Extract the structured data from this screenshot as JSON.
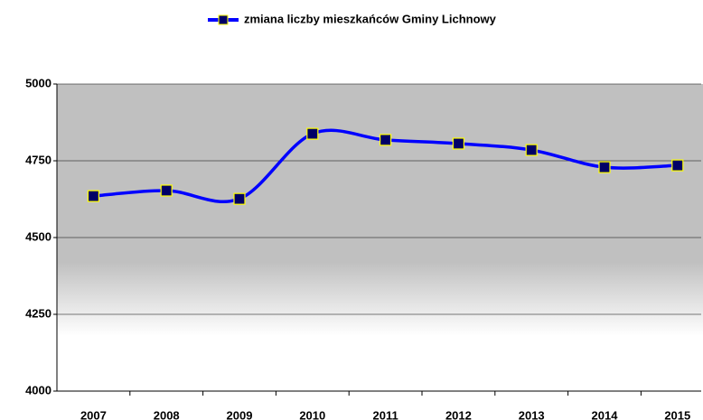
{
  "chart_data": {
    "type": "line",
    "categories": [
      "2007",
      "2008",
      "2009",
      "2010",
      "2011",
      "2012",
      "2013",
      "2014",
      "2015"
    ],
    "series": [
      {
        "name": "zmiana liczby mieszkańców Gminy Lichnowy",
        "color": "#0000ff",
        "marker_color": "#000066",
        "marker_edge": "#ffff00",
        "values": [
          4635,
          4653,
          4626,
          4838,
          4818,
          4806,
          4785,
          4729,
          4735
        ]
      }
    ],
    "ylim": [
      4000,
      5000
    ],
    "yticks": [
      4000,
      4250,
      4500,
      4750,
      5000
    ],
    "grid": true,
    "smooth": true,
    "legend": "top"
  }
}
